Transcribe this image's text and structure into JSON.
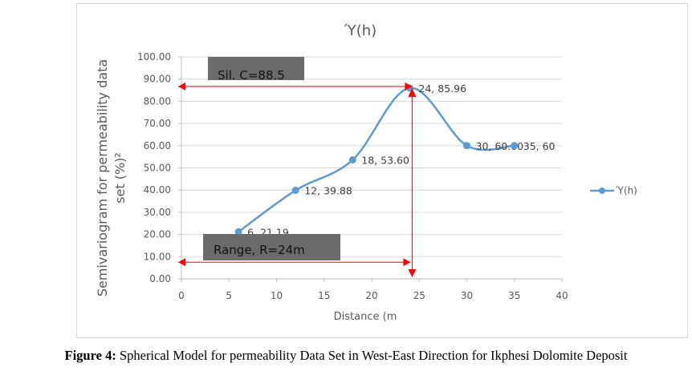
{
  "chart_data": {
    "type": "line",
    "title": "Ύ(h)",
    "xlabel": "Distance (m",
    "ylabel": "Semivariogram for permeability data set (%)²",
    "xlim": [
      0,
      40
    ],
    "ylim": [
      0,
      100
    ],
    "xticks": [
      "0",
      "5",
      "10",
      "15",
      "20",
      "25",
      "30",
      "35",
      "40"
    ],
    "yticks": [
      "0.00",
      "10.00",
      "20.00",
      "30.00",
      "40.00",
      "50.00",
      "60.00",
      "70.00",
      "80.00",
      "90.00",
      "100.00"
    ],
    "grid": true,
    "legend": {
      "position": "right",
      "entries": [
        "Ύ(h)"
      ]
    },
    "series": [
      {
        "name": "Ύ(h)",
        "color": "#5b9bd5",
        "x": [
          6,
          12,
          18,
          24,
          30,
          35
        ],
        "y": [
          21.19,
          39.88,
          53.6,
          85.96,
          60.0,
          60
        ],
        "labels": [
          "6, 21.19",
          "12, 39.88",
          "18, 53.60",
          "24, 85.96",
          "30, 60.00",
          "35, 60"
        ]
      }
    ],
    "annotations": {
      "sill": {
        "text": "Sil. C=88.5",
        "value": 88.5
      },
      "range": {
        "text": "Range, R=24m",
        "value": 24
      },
      "arrow_color": "#ff0000"
    }
  },
  "caption": {
    "bold": "Figure 4:",
    "text": " Spherical Model for permeability Data Set in West-East Direction for Ikphesi Dolomite Deposit"
  }
}
